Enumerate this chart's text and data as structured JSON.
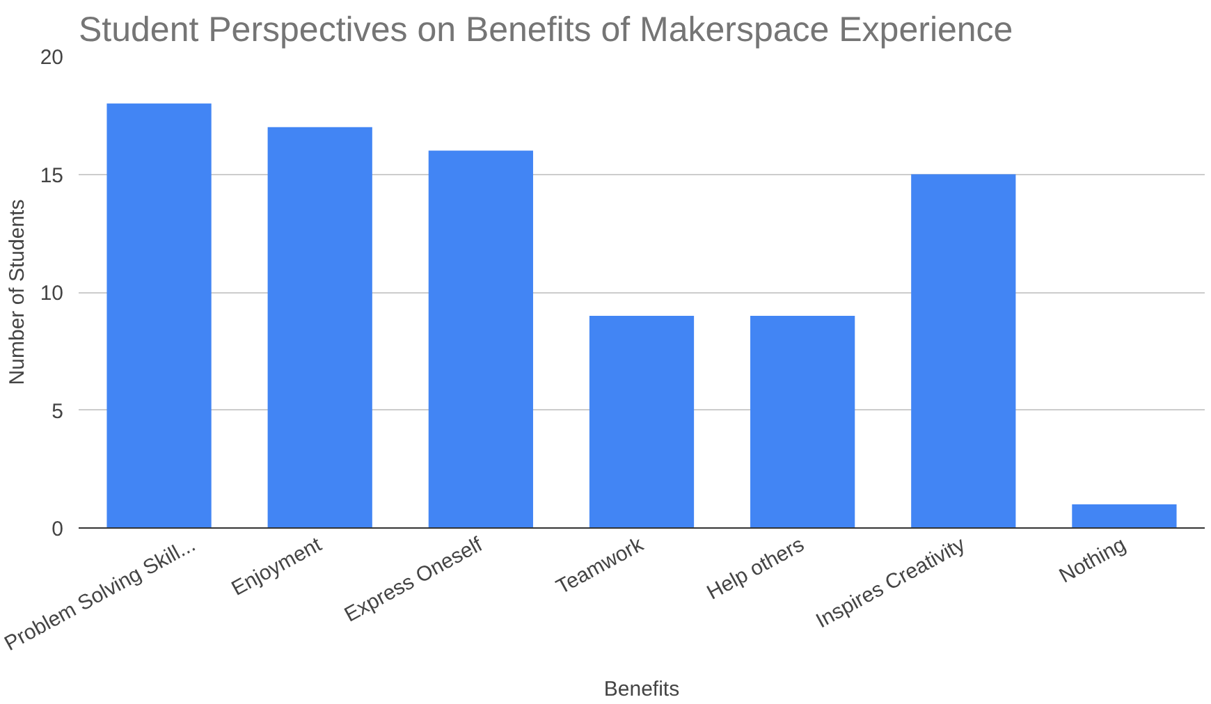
{
  "chart_data": {
    "type": "bar",
    "title": "Student Perspectives on Benefits of Makerspace Experience",
    "xlabel": "Benefits",
    "ylabel": "Number of Students",
    "categories": [
      "Problem Solving Skill...",
      "Enjoyment",
      "Express Oneself",
      "Teamwork",
      "Help others",
      "Inspires Creativity",
      "Nothing"
    ],
    "values": [
      18,
      17,
      16,
      9,
      9,
      15,
      1
    ],
    "color": "#4285f4",
    "ylim": [
      0,
      20
    ],
    "yticks": [
      0,
      5,
      10,
      15,
      20
    ],
    "grid": "y"
  }
}
